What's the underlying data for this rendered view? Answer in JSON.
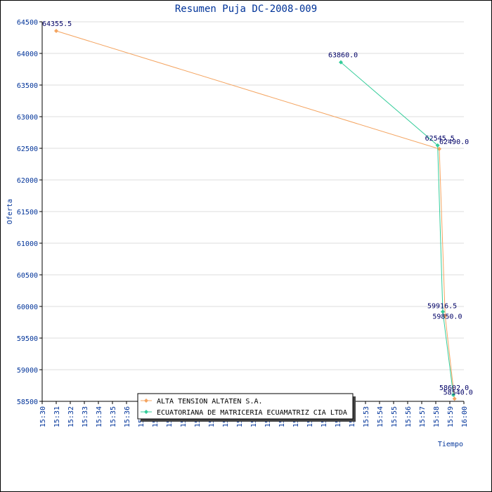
{
  "chart_data": {
    "type": "line",
    "title": "Resumen Puja DC-2008-009",
    "xlabel": "Tiempo",
    "ylabel": "Oferta",
    "xlim": [
      "15:30",
      "16:00"
    ],
    "ylim": [
      58500,
      64500
    ],
    "x_ticks": [
      "15:30",
      "15:31",
      "15:32",
      "15:33",
      "15:34",
      "15:35",
      "15:36",
      "15:37",
      "15:38",
      "15:39",
      "15:40",
      "15:41",
      "15:42",
      "15:43",
      "15:44",
      "15:45",
      "15:46",
      "15:47",
      "15:48",
      "15:49",
      "15:50",
      "15:51",
      "15:52",
      "15:53",
      "15:54",
      "15:55",
      "15:56",
      "15:57",
      "15:58",
      "15:59",
      "16:00"
    ],
    "y_ticks": [
      58500,
      59000,
      59500,
      60000,
      60500,
      61000,
      61500,
      62000,
      62500,
      63000,
      63500,
      64000,
      64500
    ],
    "grid": true,
    "legend_position": "bottom-center",
    "series": [
      {
        "name": "ALTA TENSION ALTATEN S.A.",
        "color": "#f4a460",
        "points": [
          {
            "x": "15:31:00",
            "y": 64355.5,
            "label": "64355.5"
          },
          {
            "x": "15:58:15",
            "y": 62490.0,
            "label": "62490.0"
          },
          {
            "x": "15:58:40",
            "y": 59850.0,
            "label": "59850.0"
          },
          {
            "x": "15:59:20",
            "y": 58540.0,
            "label": "58540.0"
          }
        ]
      },
      {
        "name": "ECUATORIANA DE MATRICERIA ECUAMATRIZ CIA LTDA",
        "color": "#33cc99",
        "points": [
          {
            "x": "15:51:15",
            "y": 63860.0,
            "label": "63860.0"
          },
          {
            "x": "15:58:08",
            "y": 62545.5,
            "label": "62545.5"
          },
          {
            "x": "15:58:30",
            "y": 59916.5,
            "label": "59916.5"
          },
          {
            "x": "15:59:15",
            "y": 58602.0,
            "label": "58602.0"
          }
        ]
      }
    ]
  }
}
